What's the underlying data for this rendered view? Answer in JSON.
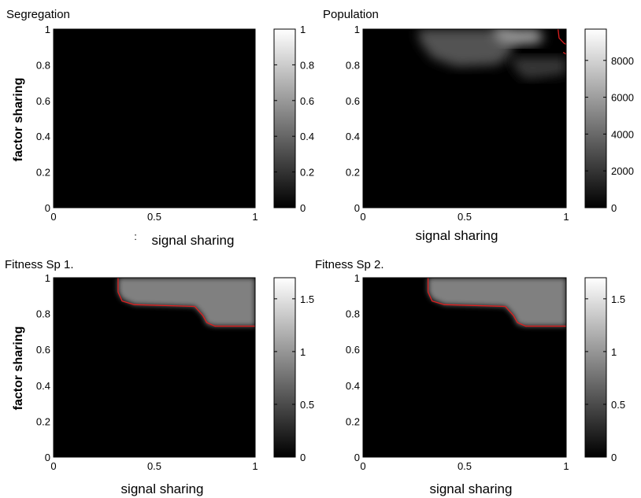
{
  "figure": {
    "background": "#ffffff",
    "colormap": "gray",
    "contour_color": "#dd2020"
  },
  "chart_data": [
    {
      "type": "heatmap",
      "title": "Segregation",
      "xlabel": "signal sharing",
      "ylabel": "factor sharing",
      "xlim": [
        0,
        1
      ],
      "ylim": [
        0,
        1
      ],
      "xticks": [
        "0",
        "0.5",
        "1"
      ],
      "yticks": [
        "0",
        "0.2",
        "0.4",
        "0.6",
        "0.8",
        "1"
      ],
      "colorbar": {
        "min": 0,
        "max": 1,
        "ticks": [
          "0",
          "0.2",
          "0.4",
          "0.6",
          "0.8",
          "1"
        ],
        "tick_values": [
          0,
          0.2,
          0.4,
          0.6,
          0.8,
          1
        ]
      },
      "stray_mark": ":",
      "regions": [],
      "contour": []
    },
    {
      "type": "heatmap",
      "title": "Population",
      "xlabel": "signal sharing",
      "ylabel": "",
      "xlim": [
        0,
        1
      ],
      "ylim": [
        0,
        1
      ],
      "xticks": [
        "0",
        "0.5",
        "1"
      ],
      "yticks": [
        "0",
        "0.2",
        "0.4",
        "0.6",
        "0.8",
        "1"
      ],
      "colorbar": {
        "min": 0,
        "max": 9700,
        "ticks": [
          "0",
          "2000",
          "4000",
          "6000",
          "8000"
        ],
        "tick_values": [
          0,
          2000,
          4000,
          6000,
          8000
        ]
      },
      "regions": [
        {
          "shade": 0.32,
          "points": [
            [
              0.27,
              1
            ],
            [
              0.7,
              1
            ],
            [
              0.75,
              0.95
            ],
            [
              0.72,
              0.85
            ],
            [
              0.66,
              0.8
            ],
            [
              0.46,
              0.79
            ],
            [
              0.34,
              0.84
            ],
            [
              0.28,
              0.93
            ]
          ]
        },
        {
          "shade": 0.6,
          "points": [
            [
              0.64,
              1
            ],
            [
              0.86,
              1
            ],
            [
              0.89,
              0.95
            ],
            [
              0.86,
              0.92
            ],
            [
              0.74,
              0.91
            ],
            [
              0.66,
              0.94
            ]
          ]
        },
        {
          "shade": 0.22,
          "points": [
            [
              0.72,
              0.84
            ],
            [
              1,
              0.84
            ],
            [
              1,
              0.75
            ],
            [
              0.88,
              0.73
            ],
            [
              0.8,
              0.72
            ],
            [
              0.76,
              0.76
            ]
          ]
        }
      ],
      "contour": [
        [
          0.96,
          1
        ],
        [
          0.965,
          0.95
        ],
        [
          0.99,
          0.92
        ],
        [
          1,
          0.915
        ]
      ],
      "contour2": [
        [
          0.985,
          0.87
        ],
        [
          1,
          0.86
        ]
      ]
    },
    {
      "type": "heatmap",
      "title": "Fitness Sp 1.",
      "xlabel": "signal sharing",
      "ylabel": "factor sharing",
      "xlim": [
        0,
        1
      ],
      "ylim": [
        0,
        1
      ],
      "xticks": [
        "0",
        "0.5",
        "1"
      ],
      "yticks": [
        "0",
        "0.2",
        "0.4",
        "0.6",
        "0.8",
        "1"
      ],
      "colorbar": {
        "min": 0,
        "max": 1.7,
        "ticks": [
          "0",
          "0.5",
          "1",
          "1.5"
        ],
        "tick_values": [
          0,
          0.5,
          1,
          1.5
        ]
      },
      "regions": [
        {
          "shade": 0.5,
          "points": [
            [
              0.32,
              1
            ],
            [
              1,
              1
            ],
            [
              1,
              0.73
            ],
            [
              0.8,
              0.73
            ],
            [
              0.76,
              0.74
            ],
            [
              0.74,
              0.79
            ],
            [
              0.7,
              0.84
            ],
            [
              0.4,
              0.85
            ],
            [
              0.34,
              0.88
            ],
            [
              0.32,
              0.92
            ]
          ]
        }
      ],
      "contour": [
        [
          0.32,
          1
        ],
        [
          0.32,
          0.92
        ],
        [
          0.34,
          0.87
        ],
        [
          0.4,
          0.85
        ],
        [
          0.7,
          0.84
        ],
        [
          0.74,
          0.79
        ],
        [
          0.76,
          0.75
        ],
        [
          0.8,
          0.73
        ],
        [
          1,
          0.73
        ]
      ]
    },
    {
      "type": "heatmap",
      "title": "Fitness Sp 2.",
      "xlabel": "signal sharing",
      "ylabel": "",
      "xlim": [
        0,
        1
      ],
      "ylim": [
        0,
        1
      ],
      "xticks": [
        "0",
        "0.5",
        "1"
      ],
      "yticks": [
        "0",
        "0.2",
        "0.4",
        "0.6",
        "0.8",
        "1"
      ],
      "colorbar": {
        "min": 0,
        "max": 1.7,
        "ticks": [
          "0",
          "0.5",
          "1",
          "1.5"
        ],
        "tick_values": [
          0,
          0.5,
          1,
          1.5
        ]
      },
      "regions": [
        {
          "shade": 0.5,
          "points": [
            [
              0.32,
              1
            ],
            [
              1,
              1
            ],
            [
              1,
              0.73
            ],
            [
              0.8,
              0.73
            ],
            [
              0.76,
              0.74
            ],
            [
              0.74,
              0.79
            ],
            [
              0.7,
              0.84
            ],
            [
              0.4,
              0.85
            ],
            [
              0.34,
              0.88
            ],
            [
              0.32,
              0.92
            ]
          ]
        }
      ],
      "contour": [
        [
          0.32,
          1
        ],
        [
          0.32,
          0.92
        ],
        [
          0.34,
          0.87
        ],
        [
          0.4,
          0.85
        ],
        [
          0.7,
          0.84
        ],
        [
          0.74,
          0.79
        ],
        [
          0.76,
          0.75
        ],
        [
          0.8,
          0.73
        ],
        [
          1,
          0.73
        ]
      ]
    }
  ]
}
